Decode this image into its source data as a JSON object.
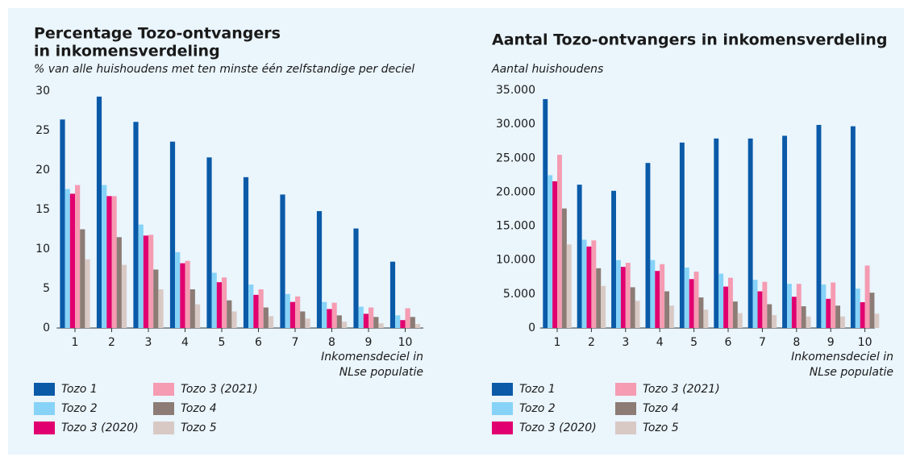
{
  "chart_data": [
    {
      "type": "bar",
      "title": [
        "Percentage Tozo-ontvangers",
        "in inkomensverdeling"
      ],
      "subtitle": "% van alle huishoudens met ten minste één zelfstandige per deciel",
      "xlabel": [
        "Inkomensdeciel in",
        "NLse populatie"
      ],
      "categories": [
        "1",
        "2",
        "3",
        "4",
        "5",
        "6",
        "7",
        "8",
        "9",
        "10"
      ],
      "ylim": [
        0,
        30
      ],
      "yticks": [
        0,
        5,
        10,
        15,
        20,
        25,
        30
      ],
      "series": [
        {
          "name": "Tozo 1",
          "color": "#0a5aa8",
          "values": [
            26.4,
            29.3,
            26.1,
            23.6,
            21.6,
            19.1,
            16.9,
            14.8,
            12.6,
            8.4
          ]
        },
        {
          "name": "Tozo 2",
          "color": "#86d3f7",
          "values": [
            17.6,
            18.1,
            13.1,
            9.6,
            7.0,
            5.5,
            4.3,
            3.3,
            2.7,
            1.6
          ]
        },
        {
          "name": "Tozo 3 (2020)",
          "color": "#e1006f",
          "values": [
            17.0,
            16.7,
            11.7,
            8.2,
            5.8,
            4.2,
            3.3,
            2.4,
            1.8,
            1.0
          ]
        },
        {
          "name": "Tozo 3 (2021)",
          "color": "#f59bb2",
          "values": [
            18.1,
            16.7,
            11.8,
            8.5,
            6.4,
            4.9,
            4.0,
            3.2,
            2.6,
            2.5
          ]
        },
        {
          "name": "Tozo 4",
          "color": "#8c7c75",
          "values": [
            12.5,
            11.5,
            7.4,
            4.9,
            3.5,
            2.6,
            2.1,
            1.6,
            1.4,
            1.4
          ]
        },
        {
          "name": "Tozo 5",
          "color": "#d9c9c5",
          "values": [
            8.7,
            8.0,
            4.9,
            3.0,
            2.1,
            1.5,
            1.2,
            0.8,
            0.6,
            0.5
          ]
        }
      ]
    },
    {
      "type": "bar",
      "title": [
        "Aantal Tozo-ontvangers in inkomensverdeling"
      ],
      "subtitle": "Aantal huishoudens",
      "xlabel": [
        "Inkomensdeciel in",
        "NLse populatie"
      ],
      "categories": [
        "1",
        "2",
        "3",
        "4",
        "5",
        "6",
        "7",
        "8",
        "9",
        "10"
      ],
      "ylim": [
        0,
        35000
      ],
      "yticks": [
        0,
        {
          "value": 5000,
          "label": "5.000"
        },
        {
          "value": 10000,
          "label": "10.000"
        },
        {
          "value": 15000,
          "label": "15.000"
        },
        {
          "value": 20000,
          "label": "20.000"
        },
        {
          "value": 25000,
          "label": "25.000"
        },
        {
          "value": 30000,
          "label": "30.000"
        },
        {
          "value": 35000,
          "label": "35.000"
        }
      ],
      "series": [
        {
          "name": "Tozo 1",
          "color": "#0a5aa8",
          "values": [
            33700,
            21100,
            20200,
            24300,
            27300,
            27900,
            27900,
            28300,
            29900,
            29700
          ]
        },
        {
          "name": "Tozo 2",
          "color": "#86d3f7",
          "values": [
            22500,
            13000,
            10000,
            10000,
            8900,
            8000,
            7100,
            6500,
            6400,
            5800
          ]
        },
        {
          "name": "Tozo 3 (2020)",
          "color": "#e1006f",
          "values": [
            21600,
            12000,
            9000,
            8400,
            7200,
            6100,
            5400,
            4600,
            4300,
            3800
          ]
        },
        {
          "name": "Tozo 3 (2021)",
          "color": "#f59bb2",
          "values": [
            25500,
            12900,
            9600,
            9400,
            8300,
            7400,
            6800,
            6500,
            6700,
            9200
          ]
        },
        {
          "name": "Tozo 4",
          "color": "#8c7c75",
          "values": [
            17600,
            8800,
            6000,
            5400,
            4500,
            3900,
            3500,
            3200,
            3300,
            5200
          ]
        },
        {
          "name": "Tozo 5",
          "color": "#d9c9c5",
          "values": [
            12300,
            6200,
            4000,
            3300,
            2700,
            2200,
            1900,
            1700,
            1700,
            2100
          ]
        }
      ]
    }
  ]
}
